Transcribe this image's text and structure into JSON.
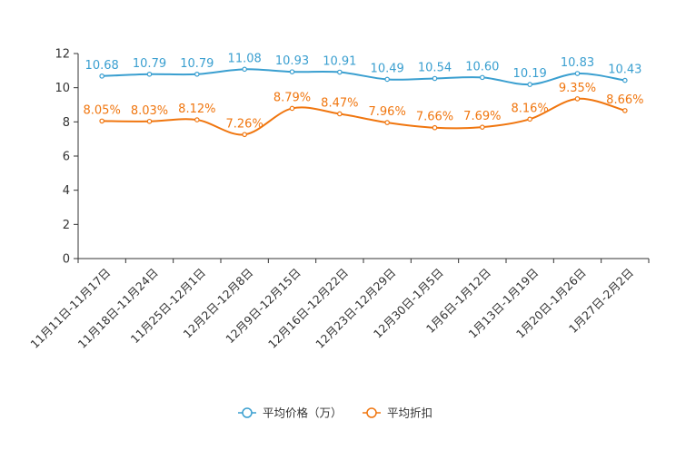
{
  "chart_data": {
    "type": "line",
    "categories": [
      "11月11日-11月17日",
      "11月18日-11月24日",
      "11月25日-12月1日",
      "12月2日-12月8日",
      "12月9日-12月15日",
      "12月16日-12月22日",
      "12月23日-12月29日",
      "12月30日-1月5日",
      "1月6日-1月12日",
      "1月13日-1月19日",
      "1月20日-1月26日",
      "1月27日-2月2日"
    ],
    "series": [
      {
        "name": "平均价格（万）",
        "color": "#3a9fd0",
        "values": [
          10.68,
          10.79,
          10.79,
          11.08,
          10.93,
          10.91,
          10.49,
          10.54,
          10.6,
          10.19,
          10.83,
          10.43
        ],
        "labels": [
          "10.68",
          "10.79",
          "10.79",
          "11.08",
          "10.93",
          "10.91",
          "10.49",
          "10.54",
          "10.60",
          "10.19",
          "10.83",
          "10.43"
        ]
      },
      {
        "name": "平均折扣",
        "color": "#f0760f",
        "values": [
          8.05,
          8.03,
          8.12,
          7.26,
          8.79,
          8.47,
          7.96,
          7.66,
          7.69,
          8.16,
          9.35,
          8.66
        ],
        "labels": [
          "8.05%",
          "8.03%",
          "8.12%",
          "7.26%",
          "8.79%",
          "8.47%",
          "7.96%",
          "7.66%",
          "7.69%",
          "8.16%",
          "9.35%",
          "8.66%"
        ]
      }
    ],
    "yticks": [
      "0",
      "2",
      "4",
      "6",
      "8",
      "10",
      "12"
    ],
    "ylim": [
      0,
      12
    ],
    "title": "",
    "xlabel": "",
    "ylabel": "",
    "legend_position": "bottom-center"
  }
}
